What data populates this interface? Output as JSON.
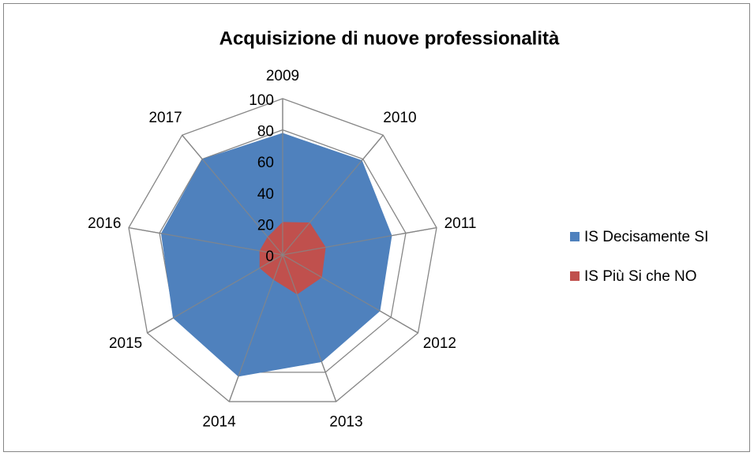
{
  "chart_data": {
    "type": "radar",
    "title": "Acquisizione di nuove professionalità",
    "categories": [
      "2009",
      "2010",
      "2011",
      "2012",
      "2013",
      "2014",
      "2015",
      "2016",
      "2017"
    ],
    "series": [
      {
        "name": "IS Decisamente SI",
        "color": "#4f81bd",
        "values": [
          78,
          79,
          71,
          72,
          73,
          83,
          81,
          79,
          80
        ]
      },
      {
        "name": "IS Più Si che NO",
        "color": "#c0504d",
        "values": [
          21,
          27,
          28,
          29,
          27,
          17,
          17,
          15,
          15
        ]
      }
    ],
    "ylim": [
      0,
      100
    ],
    "yticks": [
      0,
      20,
      40,
      60,
      80,
      100
    ],
    "grid": true,
    "legend": "right"
  }
}
